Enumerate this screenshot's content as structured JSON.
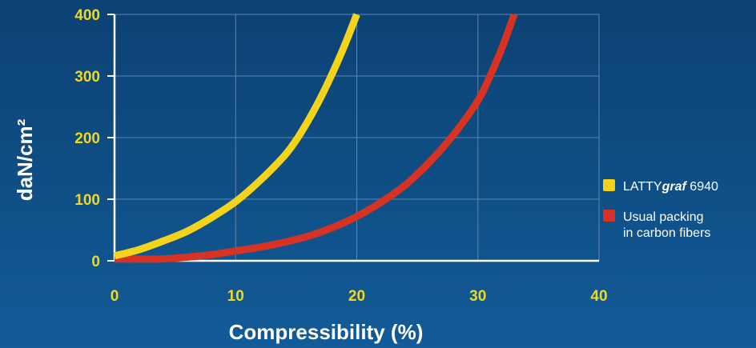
{
  "chart_data": {
    "type": "line",
    "xlabel": "Compressibility (%)",
    "ylabel": "daN/cm²",
    "xlim": [
      0,
      40
    ],
    "ylim": [
      0,
      400
    ],
    "x_ticks": [
      "0",
      "10",
      "20",
      "30",
      "40"
    ],
    "y_ticks": [
      "0",
      "100",
      "200",
      "300",
      "400"
    ],
    "grid": true,
    "legend_position": "right",
    "series": [
      {
        "name": "LATTYgraf 6940",
        "name_parts": [
          "LATTY",
          "graf",
          " 6940"
        ],
        "color": "#f4d31c",
        "x": [
          0,
          2,
          4,
          6,
          8,
          10,
          12,
          14,
          15,
          16,
          17,
          18,
          19,
          20
        ],
        "y": [
          8,
          18,
          32,
          48,
          70,
          96,
          130,
          170,
          196,
          228,
          264,
          305,
          350,
          400
        ]
      },
      {
        "name": "Usual packing in carbon fibers",
        "name_lines": [
          "Usual packing",
          "in carbon fibers"
        ],
        "color": "#d63324",
        "x": [
          0,
          4,
          6,
          8,
          10,
          12,
          14,
          16,
          18,
          20,
          22,
          24,
          26,
          28,
          30,
          31,
          32,
          33
        ],
        "y": [
          3,
          3,
          6,
          10,
          16,
          22,
          30,
          40,
          54,
          72,
          95,
          123,
          160,
          205,
          260,
          300,
          346,
          400
        ]
      }
    ]
  }
}
